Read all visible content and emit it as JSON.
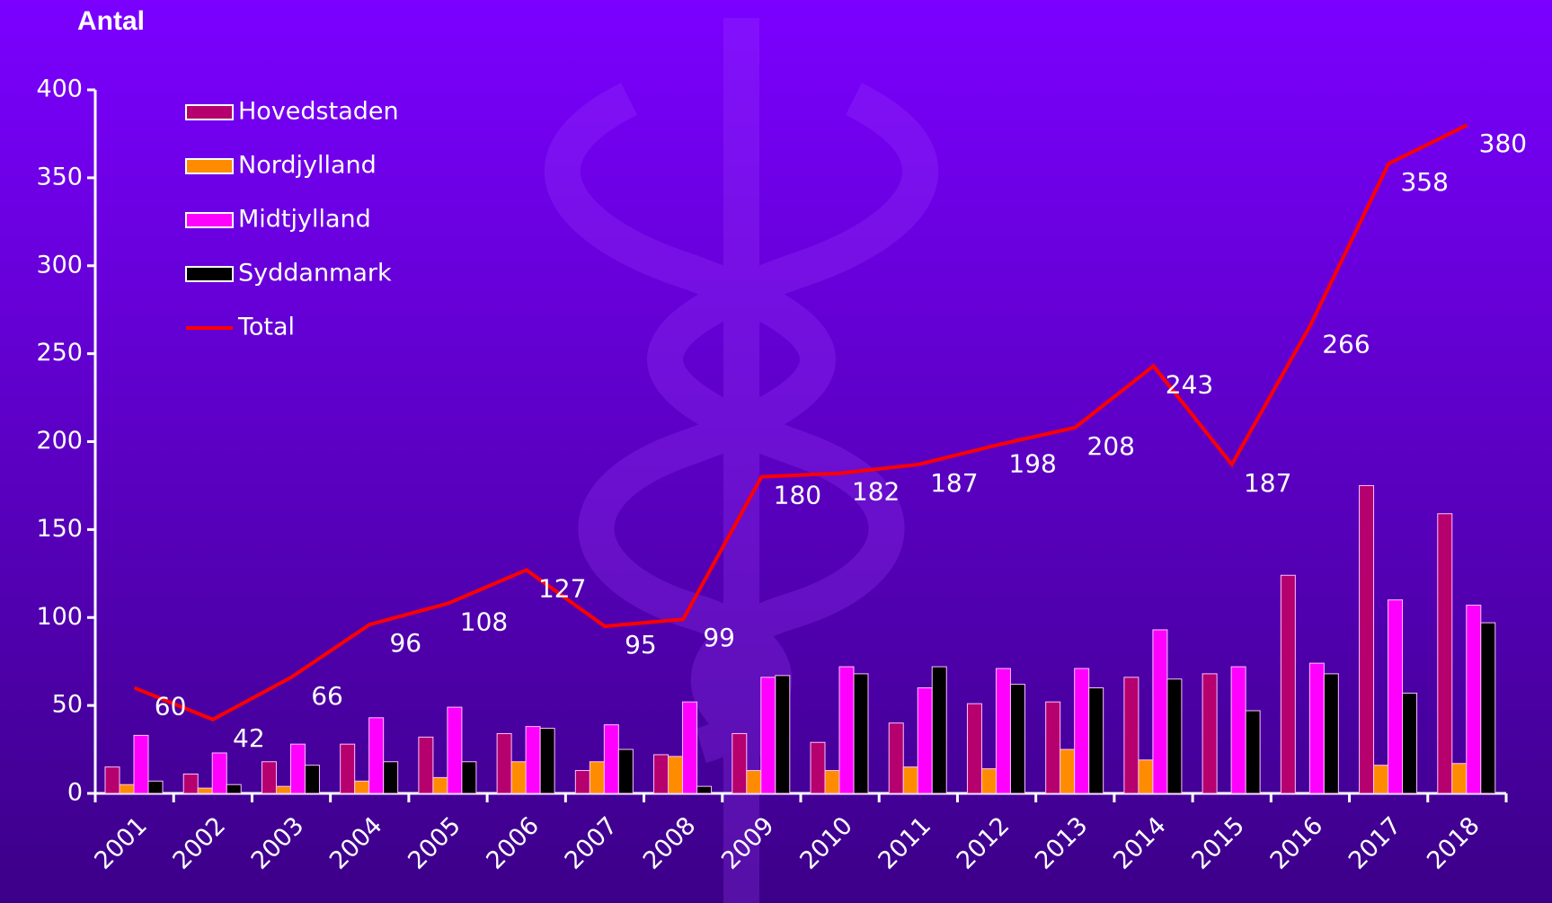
{
  "chart_data": {
    "type": "bar",
    "y_title": "Antal",
    "categories": [
      "2001",
      "2002",
      "2003",
      "2004",
      "2005",
      "2006",
      "2007",
      "2008",
      "2009",
      "2010",
      "2011",
      "2012",
      "2013",
      "2014",
      "2015",
      "2016",
      "2017",
      "2018"
    ],
    "series": [
      {
        "name": "Hovedstaden",
        "color": "#b5006e",
        "values": [
          15,
          11,
          18,
          28,
          32,
          34,
          13,
          22,
          34,
          29,
          40,
          51,
          52,
          66,
          68,
          124,
          175,
          159
        ]
      },
      {
        "name": "Nordjylland",
        "color": "#ff8c00",
        "values": [
          5,
          3,
          4,
          7,
          9,
          18,
          18,
          21,
          13,
          13,
          15,
          14,
          25,
          19,
          0,
          0,
          16,
          17
        ]
      },
      {
        "name": "Midtjylland",
        "color": "#ff00ff",
        "values": [
          33,
          23,
          28,
          43,
          49,
          38,
          39,
          52,
          66,
          72,
          60,
          71,
          71,
          93,
          72,
          74,
          110,
          107
        ]
      },
      {
        "name": "Syddanmark",
        "color": "#000000",
        "values": [
          7,
          5,
          16,
          18,
          18,
          37,
          25,
          4,
          67,
          68,
          72,
          62,
          60,
          65,
          47,
          68,
          57,
          97
        ]
      },
      {
        "name": "Total",
        "type": "line",
        "color": "#ff0000",
        "values": [
          60,
          42,
          66,
          96,
          108,
          127,
          95,
          99,
          180,
          182,
          187,
          198,
          208,
          243,
          187,
          266,
          358,
          380
        ]
      }
    ],
    "ylim": [
      0,
      400
    ],
    "yticks": [
      0,
      50,
      100,
      150,
      200,
      250,
      300,
      350,
      400
    ]
  }
}
